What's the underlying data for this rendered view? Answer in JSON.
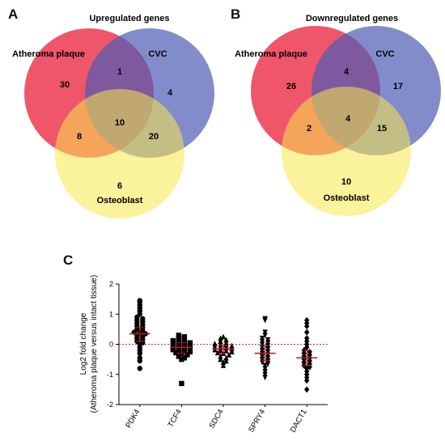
{
  "panels": {
    "a": "A",
    "b": "B",
    "c": "C"
  },
  "chart_data": [
    {
      "type": "venn",
      "title": "Upregulated genes",
      "sets": [
        "Atheroma plaque",
        "CVC",
        "Osteoblast"
      ],
      "regions": {
        "atheroma_only": 30,
        "cvc_only": 4,
        "osteoblast_only": 6,
        "atheroma_cvc": 1,
        "atheroma_osteoblast": 8,
        "cvc_osteoblast": 20,
        "all_three": 10
      },
      "colors": {
        "atheroma": "#f0566a",
        "cvc": "#4f5bb5",
        "osteoblast": "#f7e84a"
      }
    },
    {
      "type": "venn",
      "title": "Downregulated genes",
      "sets": [
        "Atheroma plaque",
        "CVC",
        "Osteoblast"
      ],
      "regions": {
        "atheroma_only": 26,
        "cvc_only": 17,
        "osteoblast_only": 10,
        "atheroma_cvc": 4,
        "atheroma_osteoblast": 2,
        "cvc_osteoblast": 15,
        "all_three": 4
      },
      "colors": {
        "atheroma": "#f0566a",
        "cvc": "#4f5bb5",
        "osteoblast": "#f7e84a"
      }
    },
    {
      "type": "scatter",
      "ylabel_lines": [
        "Log2 fold change",
        "(Atheroma plaque versus intact tissue)"
      ],
      "ylim": [
        -2,
        2
      ],
      "yticks": [
        2,
        1,
        0,
        -1,
        -2
      ],
      "reference_line": 0,
      "reference_color": "#d23030",
      "median_color": "#c8102e",
      "categories": [
        "PDK4",
        "TCF4",
        "SDC4",
        "SPRY4",
        "DACT1"
      ],
      "markers": [
        "circle",
        "square",
        "triangle-up",
        "triangle-down",
        "diamond"
      ],
      "medians": [
        0.35,
        -0.1,
        -0.15,
        -0.3,
        -0.45
      ],
      "iqr": [
        [
          0.1,
          0.55
        ],
        [
          -0.3,
          0.05
        ],
        [
          -0.3,
          -0.05
        ],
        [
          -0.55,
          -0.05
        ],
        [
          -0.7,
          -0.2
        ]
      ],
      "series": [
        {
          "values": [
            1.45,
            1.4,
            1.3,
            1.2,
            1.1,
            1.0,
            0.9,
            0.85,
            0.8,
            0.75,
            0.7,
            0.65,
            0.6,
            0.55,
            0.5,
            0.45,
            0.4,
            0.38,
            0.35,
            0.3,
            0.25,
            0.2,
            0.15,
            0.1,
            0.05,
            0.0,
            -0.1,
            -0.2,
            -0.3,
            -0.45,
            -0.55,
            -0.8
          ]
        },
        {
          "values": [
            0.3,
            0.25,
            0.2,
            0.15,
            0.12,
            0.1,
            0.08,
            0.05,
            0.02,
            0.0,
            -0.02,
            -0.05,
            -0.08,
            -0.1,
            -0.12,
            -0.15,
            -0.18,
            -0.2,
            -0.22,
            -0.25,
            -0.28,
            -0.3,
            -0.35,
            -0.4,
            -0.45,
            -0.5,
            -1.3
          ]
        },
        {
          "values": [
            0.25,
            0.2,
            0.15,
            0.1,
            0.05,
            0.02,
            0.0,
            -0.02,
            -0.05,
            -0.08,
            -0.1,
            -0.12,
            -0.15,
            -0.18,
            -0.2,
            -0.22,
            -0.25,
            -0.28,
            -0.3,
            -0.35,
            -0.4,
            -0.45,
            -0.5,
            -0.55,
            -0.6,
            -0.7
          ]
        },
        {
          "values": [
            0.85,
            0.8,
            0.4,
            0.3,
            0.2,
            0.15,
            0.1,
            0.05,
            0.0,
            -0.05,
            -0.1,
            -0.15,
            -0.2,
            -0.25,
            -0.3,
            -0.35,
            -0.4,
            -0.45,
            -0.5,
            -0.55,
            -0.6,
            -0.65,
            -0.7,
            -0.8,
            -0.9,
            -1.0,
            -1.1
          ]
        },
        {
          "values": [
            0.8,
            0.7,
            0.6,
            0.4,
            0.2,
            0.1,
            0.0,
            -0.1,
            -0.2,
            -0.25,
            -0.3,
            -0.35,
            -0.4,
            -0.45,
            -0.5,
            -0.55,
            -0.6,
            -0.65,
            -0.7,
            -0.75,
            -0.8,
            -0.9,
            -1.0,
            -1.1,
            -1.2,
            -1.5
          ]
        }
      ]
    }
  ]
}
